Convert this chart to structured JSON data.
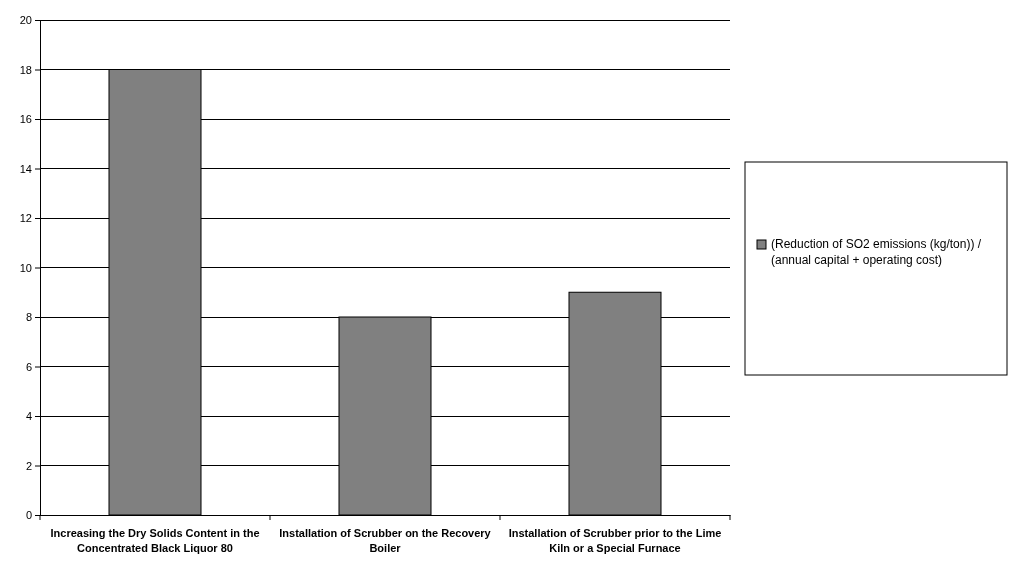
{
  "chart_data": {
    "type": "bar",
    "categories": [
      "Increasing the Dry Solids Content in the Concentrated Black Liquor 80",
      "Installation of Scrubber on the Recovery Boiler",
      "Installation of Scrubber prior to the Lime Kiln or a Special Furnace"
    ],
    "series": [
      {
        "name": "(Reduction of SO2 emissions (kg/ton)) / (annual capital + operating cost)",
        "color": "#808080",
        "values": [
          18,
          8,
          9
        ]
      }
    ],
    "ylim": [
      0,
      20
    ],
    "yticks": [
      0,
      2,
      4,
      6,
      8,
      10,
      12,
      14,
      16,
      18,
      20
    ],
    "grid": "y",
    "legend": "right"
  }
}
